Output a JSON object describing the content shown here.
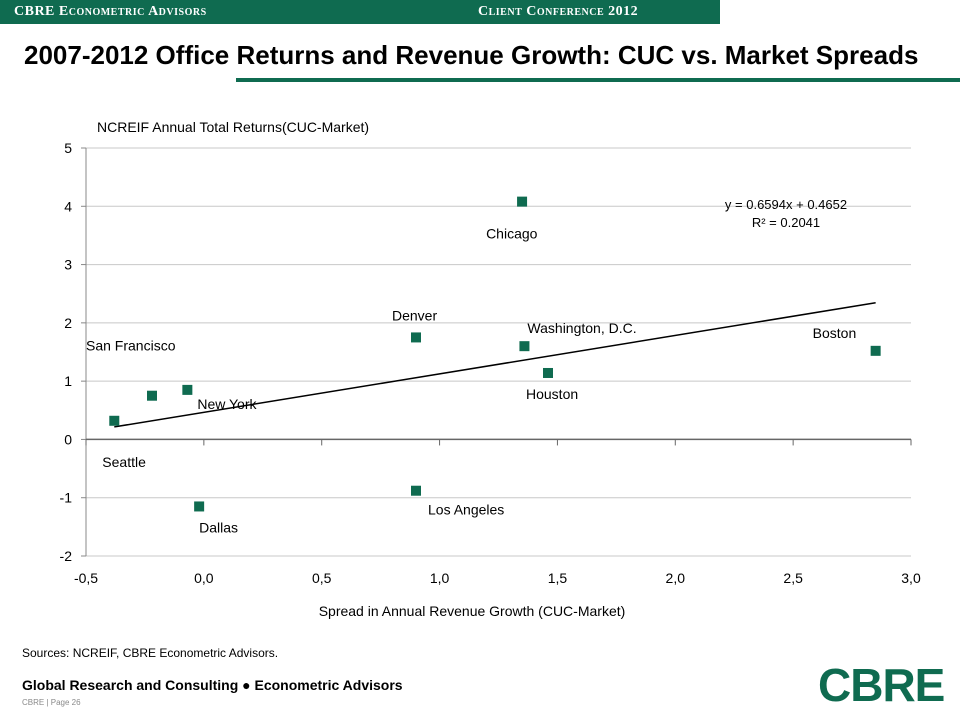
{
  "header": {
    "left": "CBRE Econometric Advisors",
    "right": "Client Conference 2012"
  },
  "title": "2007-2012 Office Returns and Revenue Growth: CUC vs. Market Spreads",
  "sources": "Sources: NCREIF,  CBRE Econometric Advisors.",
  "footer": {
    "main": "Global Research and Consulting ● Econometric Advisors",
    "page": "CBRE  |  Page 26",
    "logo": "CBRE"
  },
  "colors": {
    "accent": "#0f6b50",
    "marker": "#0f6b50",
    "grid": "#c8c8c8"
  },
  "chart_data": {
    "type": "scatter",
    "xlabel": "Spread in Annual Revenue Growth (CUC-Market)",
    "ylabel": "NCREIF Annual Total Returns(CUC-Market)",
    "xlim": [
      -0.5,
      3.0
    ],
    "ylim": [
      -2,
      5
    ],
    "x_ticks": [
      "-0,5",
      "0,0",
      "0,5",
      "1,0",
      "1,5",
      "2,0",
      "2,5",
      "3,0"
    ],
    "y_ticks": [
      "-2",
      "-1",
      "0",
      "1",
      "2",
      "3",
      "4",
      "5"
    ],
    "grid": "horizontal",
    "points": [
      {
        "label": "Seattle",
        "x": -0.38,
        "y": 0.32
      },
      {
        "label": "San Francisco",
        "x": -0.22,
        "y": 0.75
      },
      {
        "label": "New York",
        "x": -0.07,
        "y": 0.85
      },
      {
        "label": "Dallas",
        "x": -0.02,
        "y": -1.15
      },
      {
        "label": "Denver",
        "x": 0.9,
        "y": 1.75
      },
      {
        "label": "Los Angeles",
        "x": 0.9,
        "y": -0.88
      },
      {
        "label": "Chicago",
        "x": 1.35,
        "y": 4.08
      },
      {
        "label": "Washington, D.C.",
        "x": 1.36,
        "y": 1.6
      },
      {
        "label": "Houston",
        "x": 1.46,
        "y": 1.14
      },
      {
        "label": "Boston",
        "x": 2.85,
        "y": 1.52
      }
    ],
    "trendline": {
      "slope": 0.6594,
      "intercept": 0.4652,
      "x_range": [
        -0.38,
        2.85
      ],
      "equation": "y = 0.6594x + 0.4652",
      "r_squared": "R² = 0.2041"
    }
  }
}
